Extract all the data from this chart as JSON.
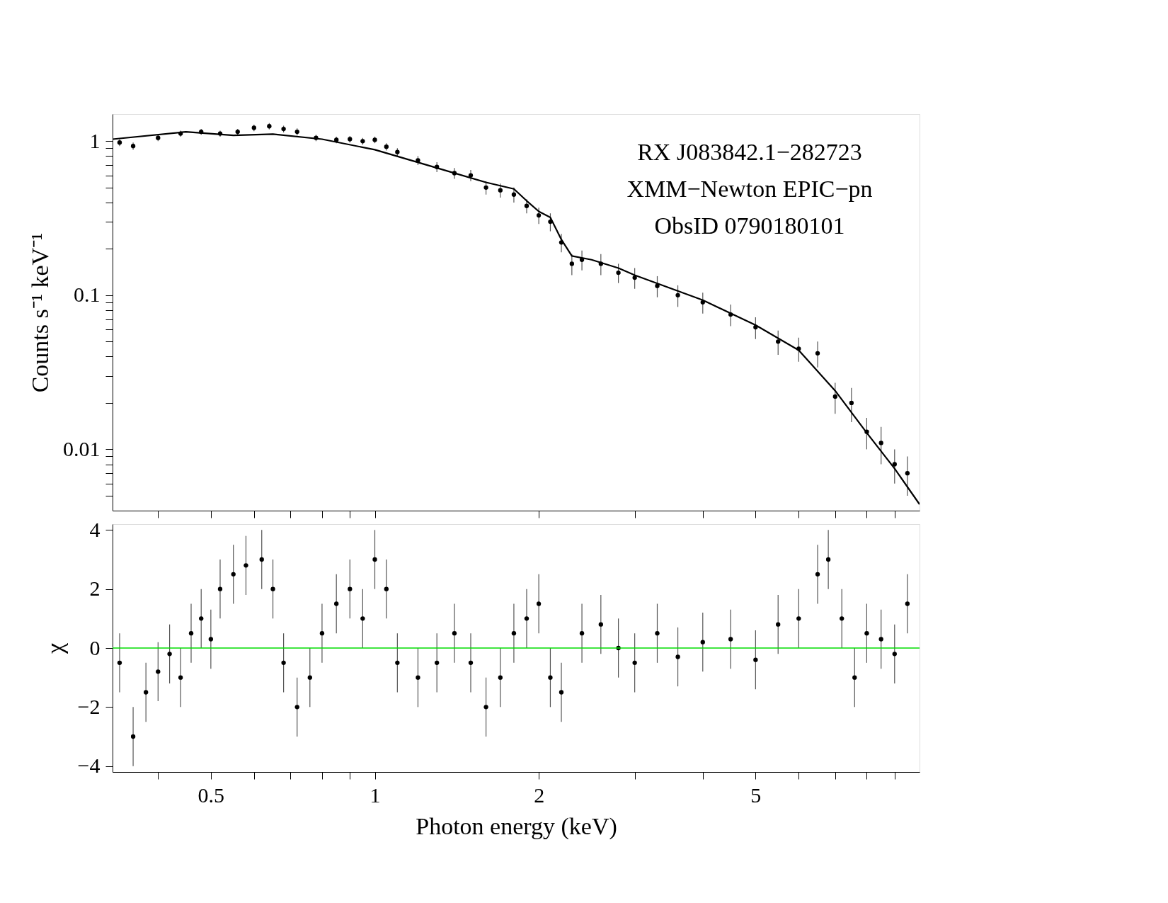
{
  "chart_data": [
    {
      "type": "scatter",
      "ylabel": "Counts s⁻¹ keV⁻¹",
      "log": "xy",
      "tick_labels": "y",
      "xlim": [
        0.33,
        10
      ],
      "ylim": [
        0.004,
        1.5
      ],
      "xticks": [
        {
          "value": 0.4,
          "label": null
        },
        {
          "value": 0.5,
          "label": null
        },
        {
          "value": 0.6,
          "label": null
        },
        {
          "value": 0.7,
          "label": null
        },
        {
          "value": 0.8,
          "label": null
        },
        {
          "value": 0.9,
          "label": null
        },
        {
          "value": 1,
          "label": null
        },
        {
          "value": 2,
          "label": null
        },
        {
          "value": 3,
          "label": null
        },
        {
          "value": 4,
          "label": null
        },
        {
          "value": 5,
          "label": null
        },
        {
          "value": 6,
          "label": null
        },
        {
          "value": 7,
          "label": null
        },
        {
          "value": 8,
          "label": null
        },
        {
          "value": 9,
          "label": null
        }
      ],
      "yticks": [
        {
          "value": 0.005,
          "label": null
        },
        {
          "value": 0.006,
          "label": null
        },
        {
          "value": 0.007,
          "label": null
        },
        {
          "value": 0.008,
          "label": null
        },
        {
          "value": 0.009,
          "label": null
        },
        0.01,
        {
          "value": 0.02,
          "label": null
        },
        {
          "value": 0.03,
          "label": null
        },
        {
          "value": 0.04,
          "label": null
        },
        {
          "value": 0.05,
          "label": null
        },
        {
          "value": 0.06,
          "label": null
        },
        {
          "value": 0.07,
          "label": null
        },
        {
          "value": 0.08,
          "label": null
        },
        {
          "value": 0.09,
          "label": null
        },
        0.1,
        {
          "value": 0.2,
          "label": null
        },
        {
          "value": 0.3,
          "label": null
        },
        {
          "value": 0.4,
          "label": null
        },
        {
          "value": 0.5,
          "label": null
        },
        {
          "value": 0.6,
          "label": null
        },
        {
          "value": 0.7,
          "label": null
        },
        {
          "value": 0.8,
          "label": null
        },
        {
          "value": 0.9,
          "label": null
        },
        1
      ],
      "annotations": [
        "RX J083842.1−282723",
        "XMM−Newton EPIC−pn",
        "ObsID 0790180101"
      ],
      "series": [
        {
          "type": "scatter",
          "color": "#000000",
          "marker": "circle",
          "x": [
            0.34,
            0.36,
            0.4,
            0.44,
            0.48,
            0.52,
            0.56,
            0.6,
            0.64,
            0.68,
            0.72,
            0.78,
            0.85,
            0.9,
            0.95,
            1.0,
            1.05,
            1.1,
            1.2,
            1.3,
            1.4,
            1.5,
            1.6,
            1.7,
            1.8,
            1.9,
            2.0,
            2.1,
            2.2,
            2.3,
            2.4,
            2.6,
            2.8,
            3.0,
            3.3,
            3.6,
            4.0,
            4.5,
            5.0,
            5.5,
            6.0,
            6.5,
            7.0,
            7.5,
            8.0,
            8.5,
            9.0,
            9.5
          ],
          "values": [
            0.98,
            0.93,
            1.05,
            1.12,
            1.15,
            1.12,
            1.15,
            1.22,
            1.25,
            1.2,
            1.15,
            1.05,
            1.02,
            1.03,
            1.0,
            1.02,
            0.92,
            0.85,
            0.75,
            0.68,
            0.62,
            0.6,
            0.5,
            0.48,
            0.45,
            0.38,
            0.33,
            0.3,
            0.22,
            0.16,
            0.17,
            0.16,
            0.14,
            0.13,
            0.115,
            0.1,
            0.09,
            0.075,
            0.062,
            0.05,
            0.045,
            0.042,
            0.022,
            0.02,
            0.013,
            0.011,
            0.008,
            0.007
          ],
          "errors": [
            0.05,
            0.05,
            0.05,
            0.05,
            0.05,
            0.05,
            0.05,
            0.06,
            0.06,
            0.06,
            0.06,
            0.05,
            0.05,
            0.05,
            0.05,
            0.05,
            0.05,
            0.05,
            0.05,
            0.05,
            0.05,
            0.05,
            0.05,
            0.05,
            0.05,
            0.04,
            0.04,
            0.04,
            0.03,
            0.025,
            0.025,
            0.025,
            0.02,
            0.02,
            0.018,
            0.016,
            0.014,
            0.012,
            0.01,
            0.009,
            0.008,
            0.008,
            0.005,
            0.005,
            0.003,
            0.003,
            0.002,
            0.002
          ]
        },
        {
          "type": "line",
          "color": "#000000",
          "x": [
            0.33,
            0.45,
            0.55,
            0.65,
            0.8,
            1.0,
            1.3,
            1.6,
            1.8,
            1.9,
            2.0,
            2.1,
            2.2,
            2.3,
            2.5,
            2.8,
            3.0,
            4.0,
            5.0,
            6.0,
            7.0,
            8.0,
            9.0,
            10
          ],
          "values": [
            1.03,
            1.15,
            1.09,
            1.11,
            1.03,
            0.88,
            0.67,
            0.54,
            0.49,
            0.41,
            0.35,
            0.32,
            0.23,
            0.18,
            0.17,
            0.15,
            0.135,
            0.093,
            0.064,
            0.044,
            0.024,
            0.0128,
            0.0075,
            0.0044
          ]
        }
      ]
    },
    {
      "type": "scatter",
      "xlabel": "Photon energy (keV)",
      "ylabel": "χ",
      "log": "x",
      "xlim": [
        0.33,
        10
      ],
      "ylim": [
        -4.2,
        4.2
      ],
      "xticks": [
        {
          "value": 0.4,
          "label": null
        },
        0.5,
        {
          "value": 0.6,
          "label": null
        },
        {
          "value": 0.7,
          "label": null
        },
        {
          "value": 0.8,
          "label": null
        },
        {
          "value": 0.9,
          "label": null
        },
        1,
        2,
        {
          "value": 3,
          "label": null
        },
        {
          "value": 4,
          "label": null
        },
        5,
        {
          "value": 6,
          "label": null
        },
        {
          "value": 7,
          "label": null
        },
        {
          "value": 8,
          "label": null
        },
        {
          "value": 9,
          "label": null
        }
      ],
      "yticks": [
        -4,
        -2,
        0,
        2,
        4
      ],
      "ref_lines": [
        {
          "axis": "y",
          "value": 0,
          "label": null,
          "color": "#00dd00"
        }
      ],
      "series": [
        {
          "type": "scatter",
          "color": "#000000",
          "marker": "circle",
          "x": [
            0.34,
            0.36,
            0.38,
            0.4,
            0.42,
            0.44,
            0.46,
            0.48,
            0.5,
            0.52,
            0.55,
            0.58,
            0.62,
            0.65,
            0.68,
            0.72,
            0.76,
            0.8,
            0.85,
            0.9,
            0.95,
            1.0,
            1.05,
            1.1,
            1.2,
            1.3,
            1.4,
            1.5,
            1.6,
            1.7,
            1.8,
            1.9,
            2.0,
            2.1,
            2.2,
            2.4,
            2.6,
            2.8,
            3.0,
            3.3,
            3.6,
            4.0,
            4.5,
            5.0,
            5.5,
            6.0,
            6.5,
            6.8,
            7.2,
            7.6,
            8.0,
            8.5,
            9.0,
            9.5
          ],
          "values": [
            -0.5,
            -3.0,
            -1.5,
            -0.8,
            -0.2,
            -1.0,
            0.5,
            1.0,
            0.3,
            2.0,
            2.5,
            2.8,
            3.0,
            2.0,
            -0.5,
            -2.0,
            -1.0,
            0.5,
            1.5,
            2.0,
            1.0,
            3.0,
            2.0,
            -0.5,
            -1.0,
            -0.5,
            0.5,
            -0.5,
            -2.0,
            -1.0,
            0.5,
            1.0,
            1.5,
            -1.0,
            -1.5,
            0.5,
            0.8,
            0,
            -0.5,
            0.5,
            -0.3,
            0.2,
            0.3,
            -0.4,
            0.8,
            1.0,
            2.5,
            3.0,
            1.0,
            -1.0,
            0.5,
            0.3,
            -0.2,
            1.5
          ],
          "errors": [
            1,
            1,
            1,
            1,
            1,
            1,
            1,
            1,
            1,
            1,
            1,
            1,
            1,
            1,
            1,
            1,
            1,
            1,
            1,
            1,
            1,
            1,
            1,
            1,
            1,
            1,
            1,
            1,
            1,
            1,
            1,
            1,
            1,
            1,
            1,
            1,
            1,
            1,
            1,
            1,
            1,
            1,
            1,
            1,
            1,
            1,
            1,
            1,
            1,
            1,
            1,
            1,
            1,
            1
          ]
        }
      ]
    }
  ]
}
